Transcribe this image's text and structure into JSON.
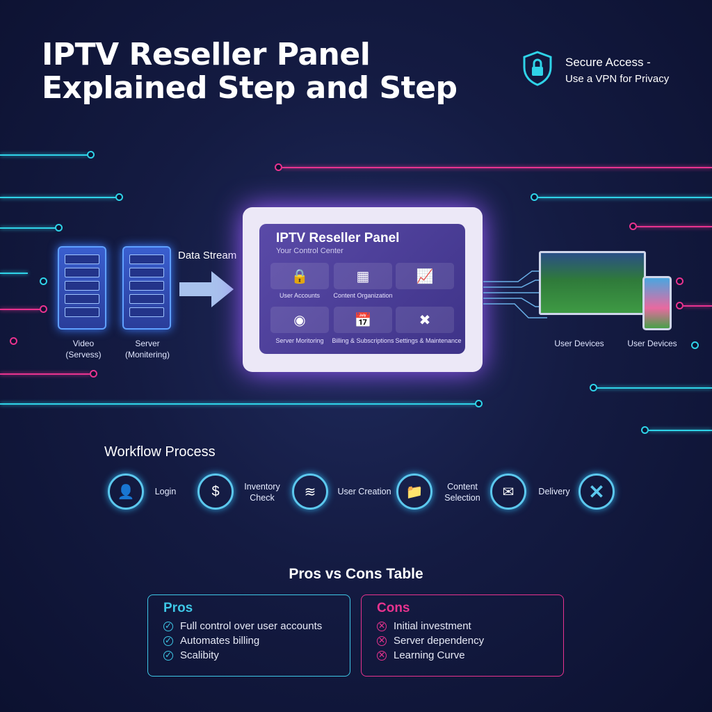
{
  "title_lines": [
    "IPTV Reseller Panel",
    "Explained Step and Step"
  ],
  "secure": {
    "line1": "Secure Access -",
    "line2": "Use a VPN for Privacy",
    "icon": "shield-lock-icon"
  },
  "servers": [
    {
      "label": "Video\n(Servess)"
    },
    {
      "label": "Server\n(Monitering)"
    }
  ],
  "data_stream": "Data Stream",
  "panel": {
    "title": "IPTV Reseller Panel",
    "subtitle": "Your Control Center",
    "tiles": [
      {
        "label": "User Accounts",
        "icon": "lock-icon"
      },
      {
        "label": "Content Organization",
        "icon": "grid-icon"
      },
      {
        "label": "",
        "icon": "chart-icon"
      },
      {
        "label": "Server Moritoring",
        "icon": "monitor-icon"
      },
      {
        "label": "Billing & Subscriptions",
        "icon": "calendar-icon"
      },
      {
        "label": "Settings & Maintenance",
        "icon": "tools-icon"
      }
    ]
  },
  "devices": [
    {
      "label": "User Devices"
    },
    {
      "label": "User Devices"
    }
  ],
  "workflow": {
    "title": "Workflow Process",
    "steps": [
      {
        "label": "Login",
        "icon": "user-key-icon"
      },
      {
        "label": "Inventory Check",
        "icon": "dollar-icon"
      },
      {
        "label": "User Creation",
        "icon": "coins-icon"
      },
      {
        "label": "Content Selection",
        "icon": "folder-plus-icon"
      },
      {
        "label": "Delivery",
        "icon": "envelope-icon"
      },
      {
        "label": "",
        "icon": "x-icon"
      }
    ]
  },
  "table": {
    "title": "Pros vs Cons Table",
    "pros": {
      "title": "Pros",
      "items": [
        "Full control over user accounts",
        "Automates billing",
        "Scalibity"
      ]
    },
    "cons": {
      "title": "Cons",
      "items": [
        "Initial investment",
        "Server dependency",
        "Learning Curve"
      ]
    }
  },
  "colors": {
    "cyan": "#2fd3e8",
    "magenta": "#e8338f",
    "pros": "#3ec7e6",
    "cons": "#e8338f"
  }
}
